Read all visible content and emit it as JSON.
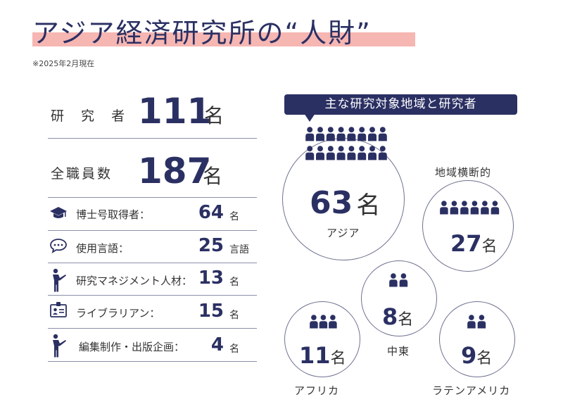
{
  "header": {
    "title": "アジア経済研究所の",
    "title_quoted": "“人財”",
    "note": "※2025年2月現在"
  },
  "staff": {
    "researchers": {
      "label": "研 究 者",
      "value": "111",
      "unit": "名"
    },
    "employees": {
      "label": "全職員数",
      "value": "187",
      "unit": "名"
    }
  },
  "rows": [
    {
      "label": "博士号取得者：",
      "value": "64",
      "unit": "名",
      "icon": "graduation-cap-icon"
    },
    {
      "label": "使用言語：",
      "value": "25",
      "unit": "言語",
      "icon": "speech-bubble-icon"
    },
    {
      "label": "研究マネジメント人材：",
      "value": "13",
      "unit": "名",
      "icon": "presenter-icon"
    },
    {
      "label": "ライブラリアン：",
      "value": "15",
      "unit": "名",
      "icon": "id-card-icon"
    },
    {
      "label": "編集制作・出版企画：",
      "value": "4",
      "unit": "名",
      "icon": "presenter-icon"
    }
  ],
  "regions_banner": "主な研究対象地域と研究者",
  "regions": {
    "asia": {
      "name": "アジア",
      "value": "63",
      "unit": "名",
      "people_icons": 16
    },
    "cross": {
      "name": "地域横断的",
      "value": "27",
      "unit": "名",
      "people_icons": 6
    },
    "middle_east": {
      "name": "中東",
      "value": "8",
      "unit": "名",
      "people_icons": 2
    },
    "africa": {
      "name": "アフリカ",
      "value": "11",
      "unit": "名",
      "people_icons": 3
    },
    "latin_america": {
      "name": "ラテンアメリカ",
      "value": "9",
      "unit": "名",
      "people_icons": 2
    }
  },
  "colors": {
    "navy": "#2b3063",
    "highlight": "#f6b6b2",
    "rule": "#8a8fa8"
  }
}
